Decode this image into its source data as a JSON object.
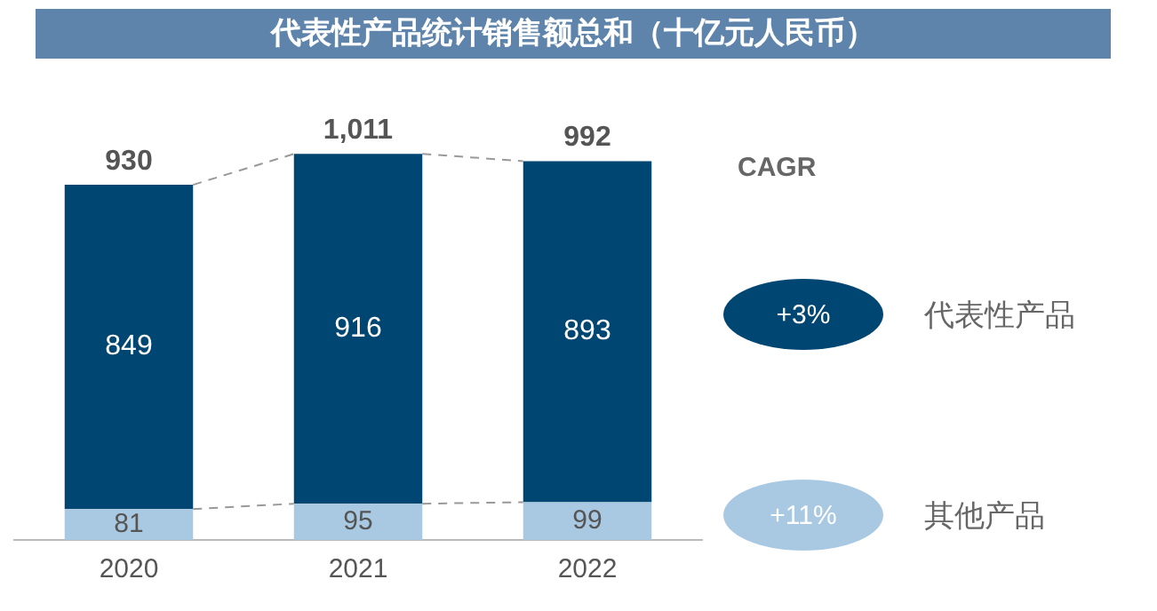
{
  "chart_data": {
    "type": "bar",
    "title": "代表性产品统计销售额总和（十亿元人民币）",
    "categories": [
      "2020",
      "2021",
      "2022"
    ],
    "stacked": true,
    "series": [
      {
        "name": "其他产品",
        "color": "#a9c9e3",
        "values": [
          81,
          95,
          99
        ]
      },
      {
        "name": "代表性产品",
        "color": "#004673",
        "values": [
          849,
          916,
          893
        ]
      }
    ],
    "totals": [
      "930",
      "1,011",
      "992"
    ],
    "data_labels": true,
    "tick_labels": "x",
    "grid": false,
    "legend": "right",
    "legend_title": "CAGR",
    "annotations": [
      "+3%",
      "+11%"
    ]
  }
}
